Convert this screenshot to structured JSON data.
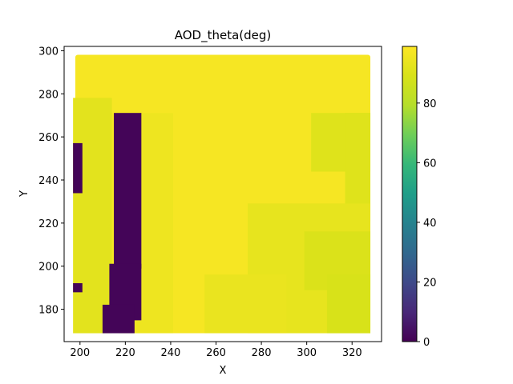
{
  "chart_data": {
    "type": "heatmap",
    "title": "AOD_theta(deg)",
    "xlabel": "X",
    "ylabel": "Y",
    "xlim": [
      193,
      333
    ],
    "ylim": [
      165,
      302
    ],
    "x_ticks": [
      "200",
      "220",
      "240",
      "260",
      "280",
      "300",
      "320"
    ],
    "y_ticks": [
      "180",
      "200",
      "220",
      "240",
      "260",
      "280",
      "300"
    ],
    "colorbar": {
      "colormap": "viridis",
      "range": [
        0,
        99
      ],
      "ticks": [
        "0",
        "20",
        "40",
        "60",
        "80"
      ]
    },
    "grid": false,
    "data_extent": {
      "x": [
        199,
        327
      ],
      "y": [
        170,
        297
      ]
    },
    "background_value": 97,
    "regions": [
      {
        "x": [
          198,
          213
        ],
        "y": [
          170,
          277
        ],
        "value": 92
      },
      {
        "x": [
          218,
          240
        ],
        "y": [
          170,
          270
        ],
        "value": 95
      },
      {
        "x": [
          198,
          200
        ],
        "y": [
          235,
          256
        ],
        "value": 1
      },
      {
        "x": [
          216,
          226
        ],
        "y": [
          200,
          270
        ],
        "value": 1
      },
      {
        "x": [
          214,
          226
        ],
        "y": [
          176,
          200
        ],
        "value": 1
      },
      {
        "x": [
          211,
          223
        ],
        "y": [
          170,
          181
        ],
        "value": 1
      },
      {
        "x": [
          198,
          200
        ],
        "y": [
          189,
          191
        ],
        "value": 1
      },
      {
        "x": [
          303,
          327
        ],
        "y": [
          245,
          270
        ],
        "value": 91
      },
      {
        "x": [
          318,
          327
        ],
        "y": [
          222,
          270
        ],
        "value": 91
      },
      {
        "x": [
          275,
          327
        ],
        "y": [
          170,
          228
        ],
        "value": 93
      },
      {
        "x": [
          300,
          327
        ],
        "y": [
          190,
          215
        ],
        "value": 90
      },
      {
        "x": [
          256,
          290
        ],
        "y": [
          170,
          195
        ],
        "value": 94
      },
      {
        "x": [
          310,
          327
        ],
        "y": [
          170,
          195
        ],
        "value": 89
      }
    ]
  }
}
